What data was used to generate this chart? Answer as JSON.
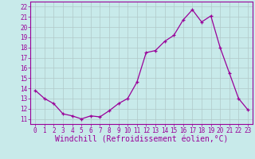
{
  "x": [
    0,
    1,
    2,
    3,
    4,
    5,
    6,
    7,
    8,
    9,
    10,
    11,
    12,
    13,
    14,
    15,
    16,
    17,
    18,
    19,
    20,
    21,
    22,
    23
  ],
  "y": [
    13.8,
    13.0,
    12.5,
    11.5,
    11.3,
    11.0,
    11.3,
    11.2,
    11.8,
    12.5,
    13.0,
    14.6,
    17.5,
    17.7,
    18.6,
    19.2,
    20.7,
    21.7,
    20.5,
    21.1,
    18.0,
    15.5,
    13.0,
    11.9
  ],
  "xlim": [
    -0.5,
    23.5
  ],
  "ylim": [
    10.5,
    22.5
  ],
  "yticks": [
    11,
    12,
    13,
    14,
    15,
    16,
    17,
    18,
    19,
    20,
    21,
    22
  ],
  "xticks": [
    0,
    1,
    2,
    3,
    4,
    5,
    6,
    7,
    8,
    9,
    10,
    11,
    12,
    13,
    14,
    15,
    16,
    17,
    18,
    19,
    20,
    21,
    22,
    23
  ],
  "xlabel": "Windchill (Refroidissement éolien,°C)",
  "line_color": "#990099",
  "marker": "+",
  "bg_color": "#c8eaea",
  "grid_color": "#b0c8c8",
  "label_color": "#990099",
  "tick_color": "#990099",
  "font_size": 5.5,
  "xlabel_font_size": 7.0
}
